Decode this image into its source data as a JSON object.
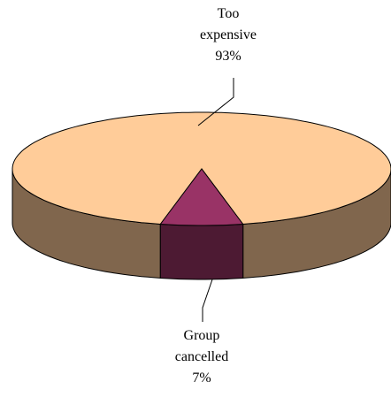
{
  "chart_data": {
    "type": "pie",
    "categories": [
      "Too expensive",
      "Group cancelled"
    ],
    "values": [
      93,
      7
    ],
    "value_labels": [
      "93%",
      "7%"
    ],
    "colors": [
      "#ffcc99",
      "#993366"
    ]
  }
}
